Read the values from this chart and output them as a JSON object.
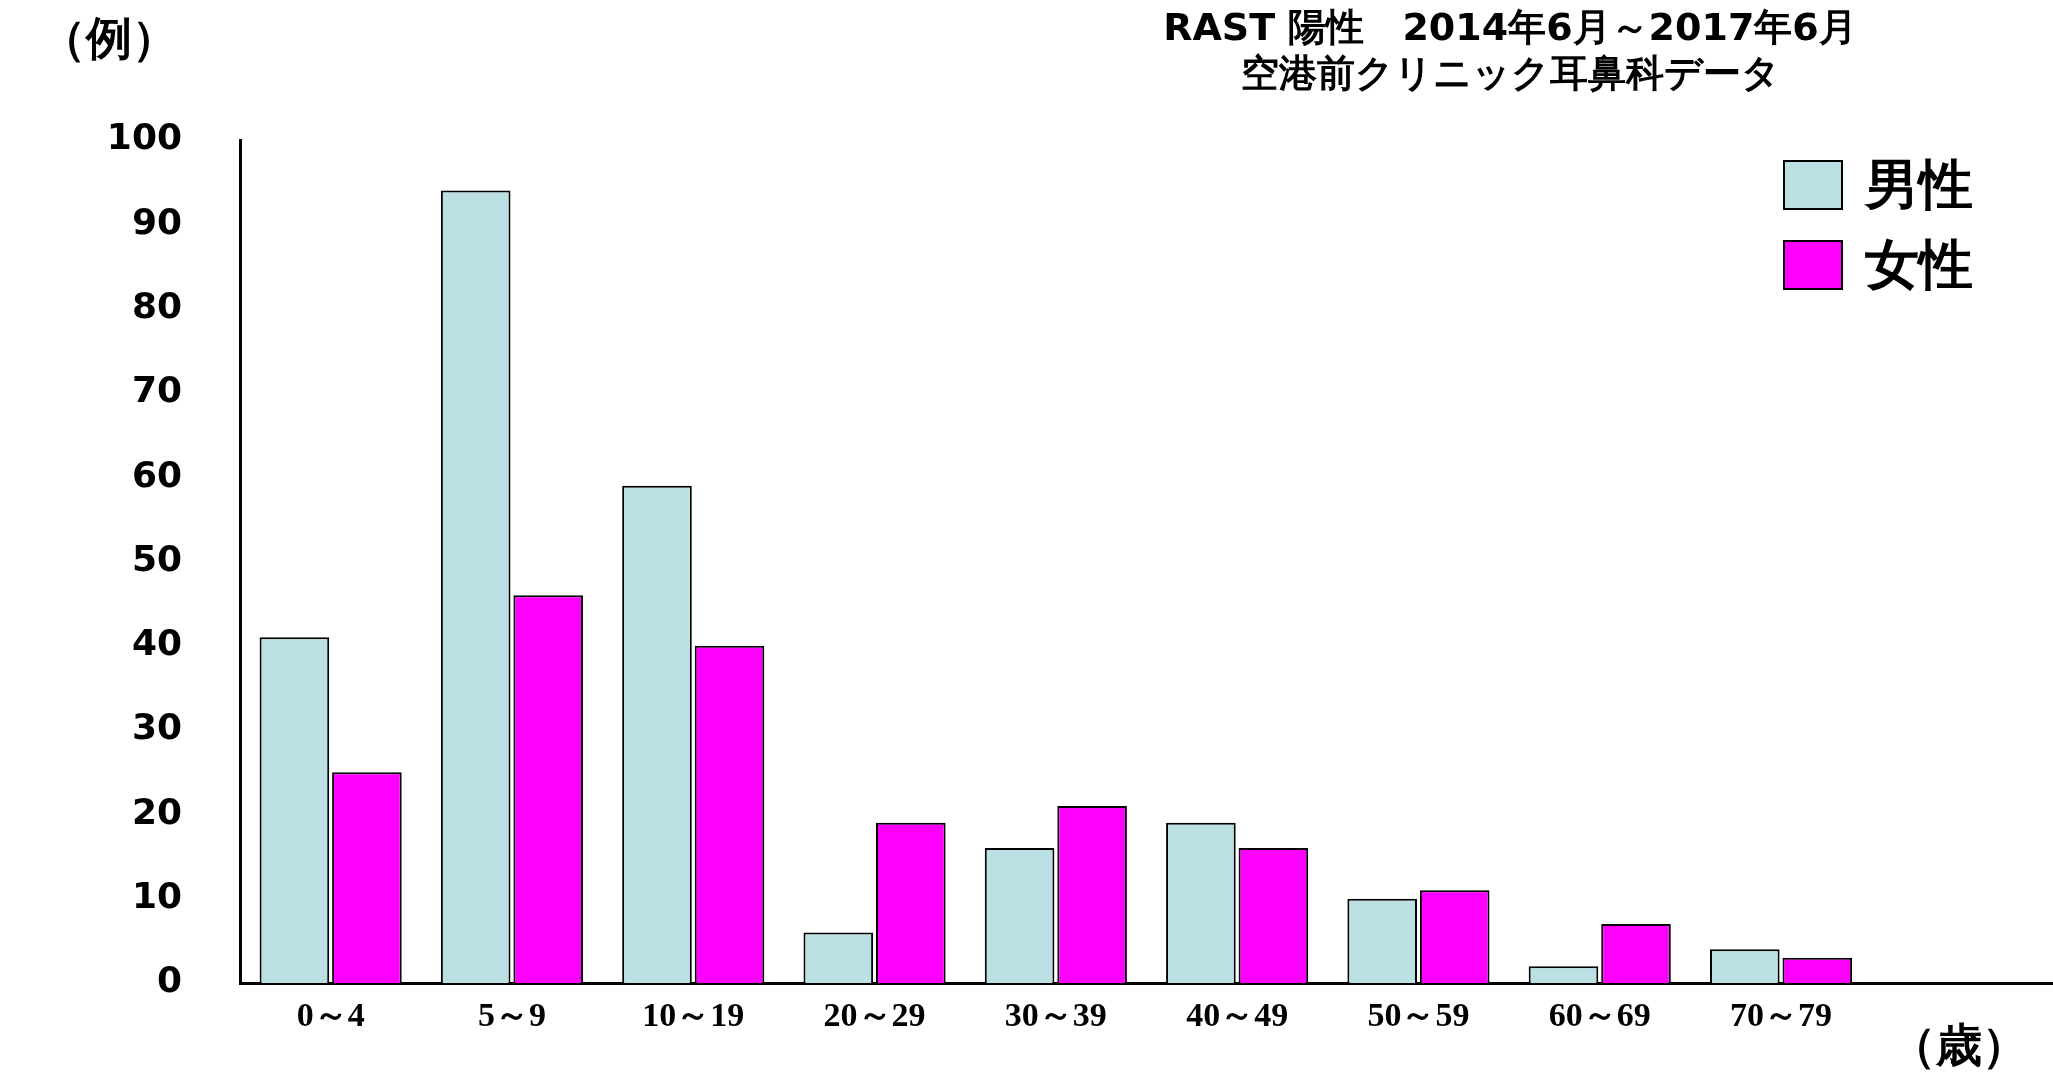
{
  "chart_data": {
    "type": "bar",
    "title": "RAST 陽性　2014年6月～2017年6月",
    "subtitle": "空港前クリニック耳鼻科データ",
    "ylabel": "（例）",
    "xlabel": "（歳）",
    "categories": [
      "0～4",
      "5～9",
      "10～19",
      "20～29",
      "30～39",
      "40～49",
      "50～59",
      "60～69",
      "70～79",
      null
    ],
    "series": [
      {
        "name": "男性",
        "color": "#bbe0e3",
        "values": [
          41,
          94,
          59,
          6,
          16,
          19,
          10,
          2,
          4,
          null
        ]
      },
      {
        "name": "女性",
        "color": "#ff00ff",
        "values": [
          25,
          46,
          40,
          19,
          21,
          16,
          11,
          7,
          3,
          null
        ]
      }
    ],
    "ylim": [
      0,
      100
    ],
    "yticks": [
      0,
      10,
      20,
      30,
      40,
      50,
      60,
      70,
      80,
      90,
      100
    ],
    "grid": false,
    "legend": "top right"
  }
}
